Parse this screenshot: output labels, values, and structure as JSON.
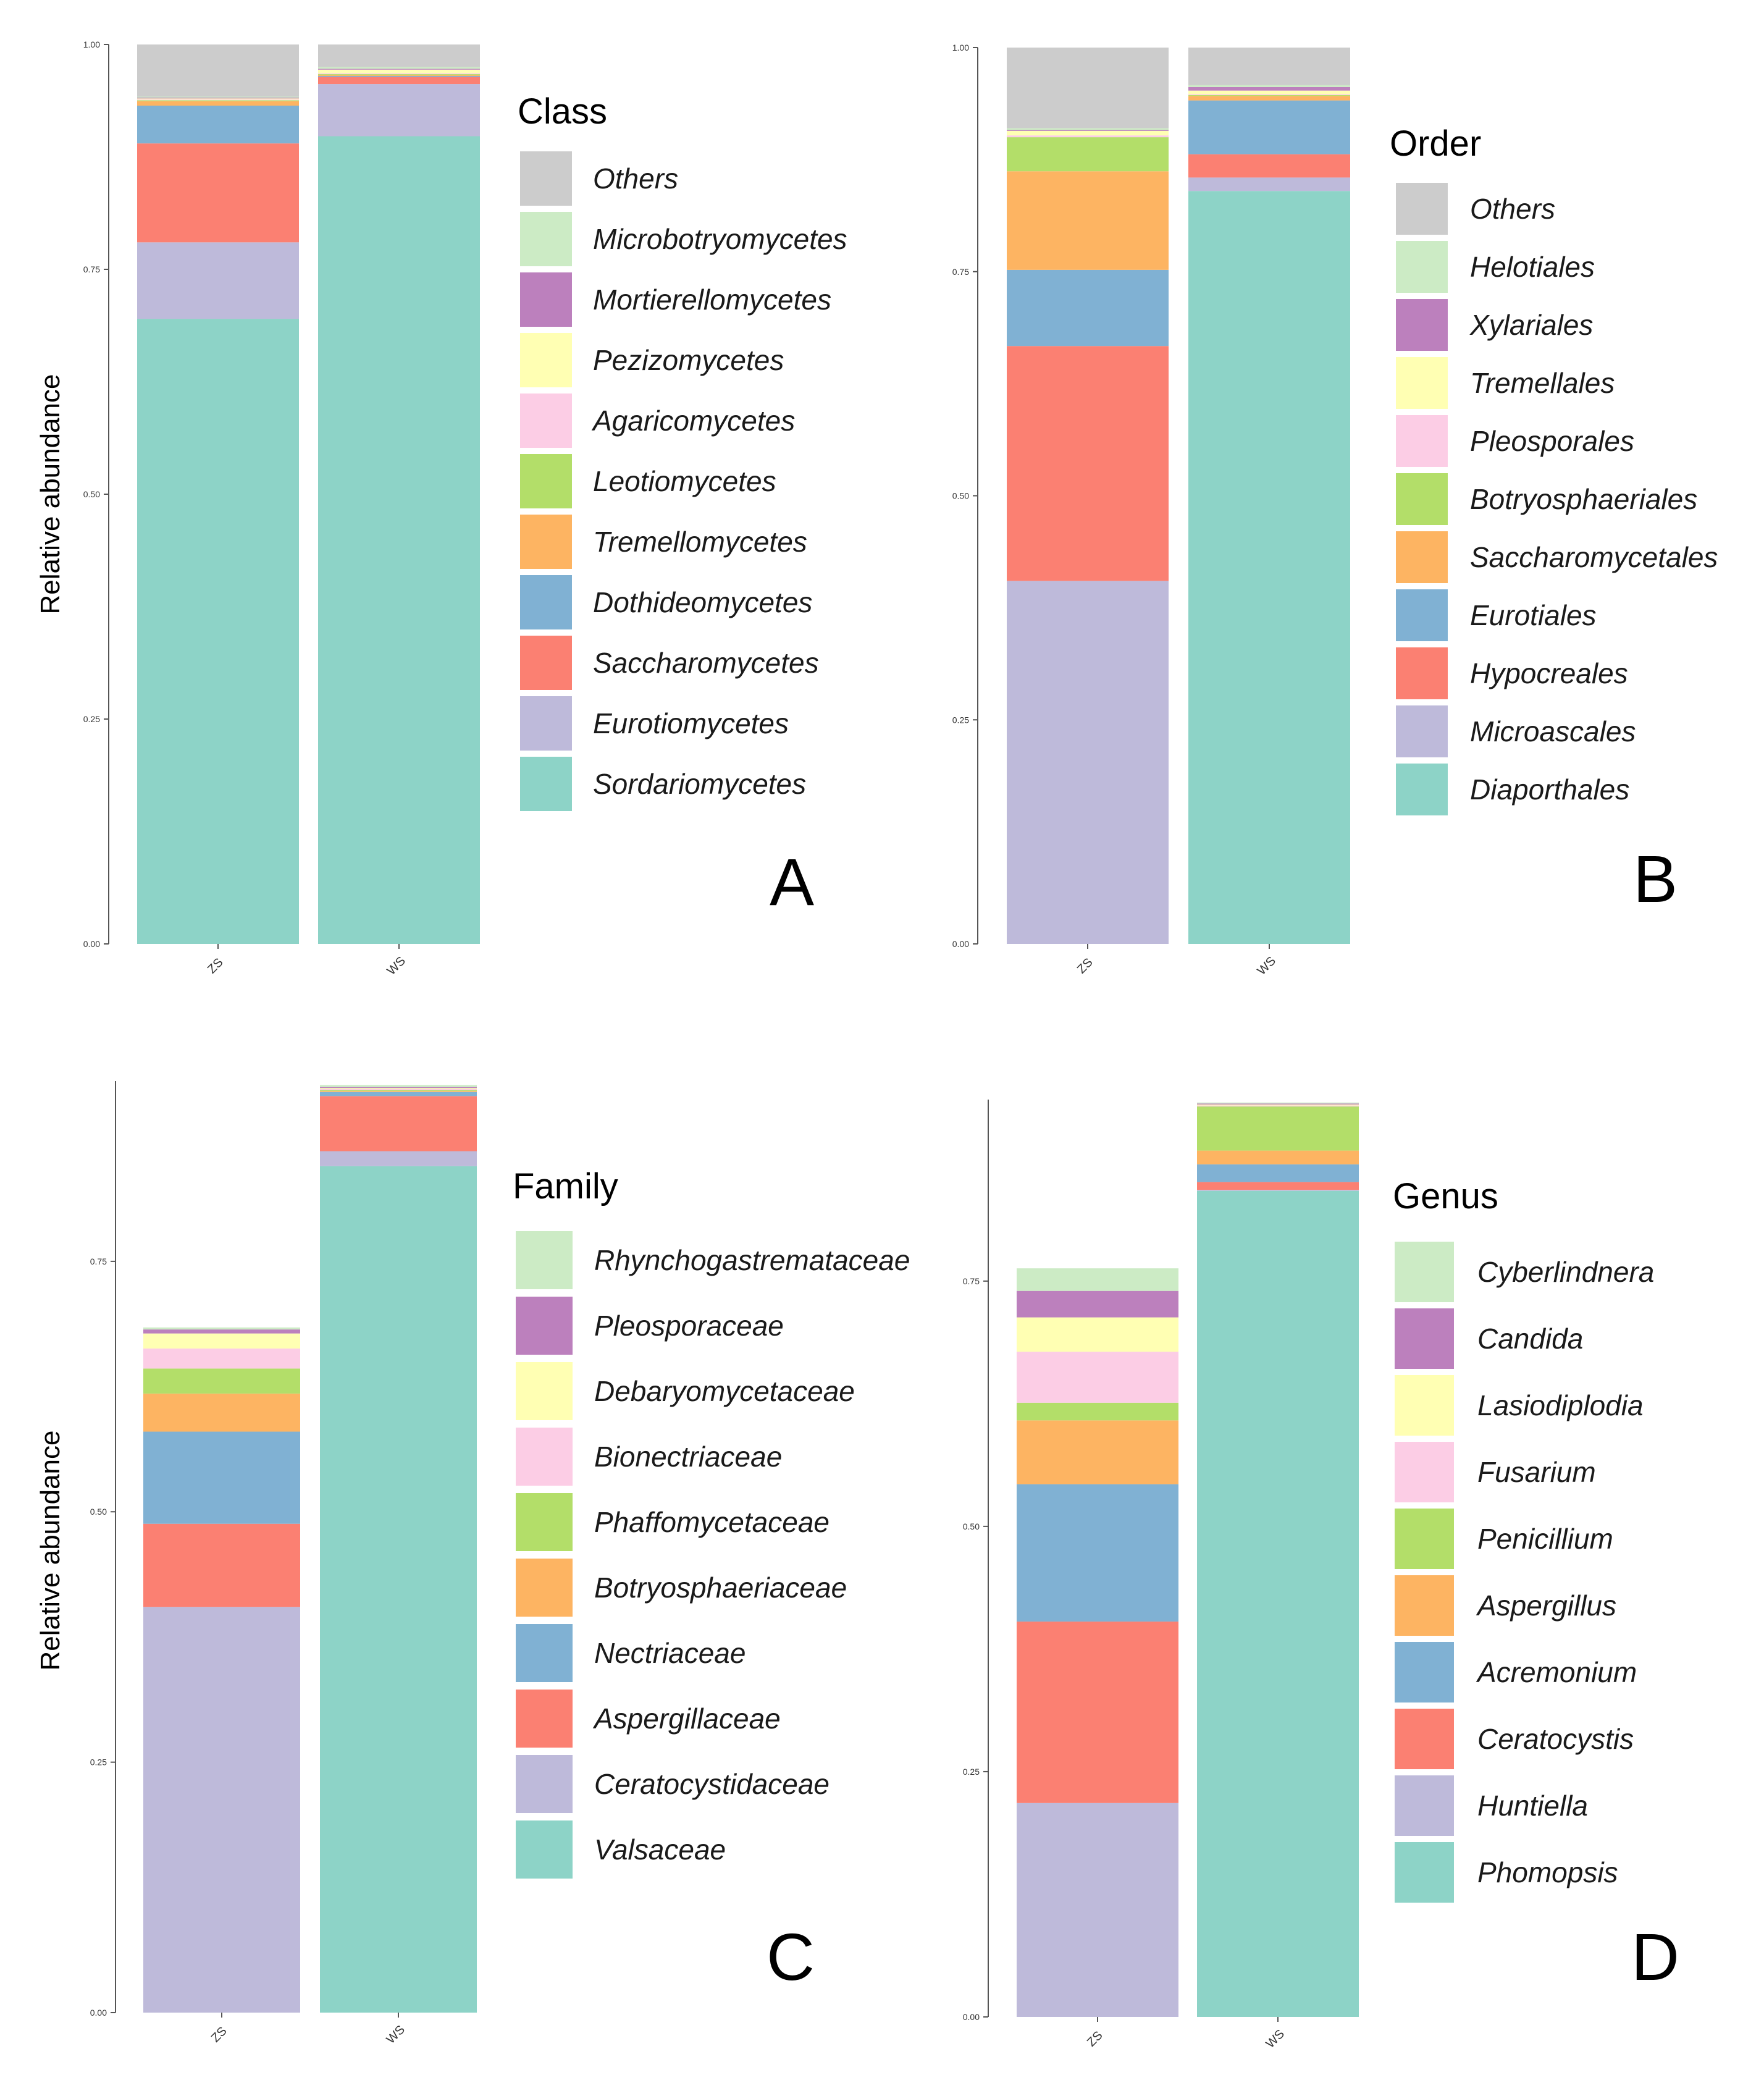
{
  "palette": {
    "Others": "#cccccc",
    "c1": "#ccebc5",
    "c2": "#bc80bd",
    "c3": "#ffffb3",
    "c4": "#fccde5",
    "c5": "#b3de69",
    "c6": "#fdb462",
    "c7": "#80b1d3",
    "c8": "#fb8072",
    "c9": "#bebada",
    "c10": "#8dd3c7"
  },
  "chart_data": [
    {
      "type": "bar",
      "stacked": true,
      "panel": "A",
      "ylabel": "Relative abundance",
      "ylim": [
        0,
        1
      ],
      "yticks": [
        "0.00",
        "0.25",
        "0.50",
        "0.75",
        "1.00"
      ],
      "categories": [
        "ZS",
        "WS"
      ],
      "legend_title": "Class",
      "legend_position": "right",
      "series": [
        {
          "name": "Sordariomycetes",
          "color": "#8dd3c7",
          "values": [
            0.695,
            0.898
          ]
        },
        {
          "name": "Eurotiomycetes",
          "color": "#bebada",
          "values": [
            0.085,
            0.058
          ]
        },
        {
          "name": "Saccharomycetes",
          "color": "#fb8072",
          "values": [
            0.11,
            0.008
          ]
        },
        {
          "name": "Dothideomycetes",
          "color": "#80b1d3",
          "values": [
            0.042,
            0.001
          ]
        },
        {
          "name": "Tremellomycetes",
          "color": "#fdb462",
          "values": [
            0.005,
            0.001
          ]
        },
        {
          "name": "Leotiomycetes",
          "color": "#b3de69",
          "values": [
            0.001,
            0.001
          ]
        },
        {
          "name": "Agaricomycetes",
          "color": "#fccde5",
          "values": [
            0.001,
            0.001
          ]
        },
        {
          "name": "Pezizomycetes",
          "color": "#ffffb3",
          "values": [
            0.001,
            0.004
          ]
        },
        {
          "name": "Mortierellomycetes",
          "color": "#bc80bd",
          "values": [
            0.001,
            0.001
          ]
        },
        {
          "name": "Microbotryomycetes",
          "color": "#ccebc5",
          "values": [
            0.001,
            0.002
          ]
        },
        {
          "name": "Others",
          "color": "#cccccc",
          "values": [
            0.058,
            0.025
          ]
        }
      ]
    },
    {
      "type": "bar",
      "stacked": true,
      "panel": "B",
      "ylabel": "",
      "ylim": [
        0,
        1
      ],
      "yticks": [
        "0.00",
        "0.25",
        "0.50",
        "0.75",
        "1.00"
      ],
      "categories": [
        "ZS",
        "WS"
      ],
      "legend_title": "Order",
      "legend_position": "right",
      "series": [
        {
          "name": "Diaporthales",
          "color": "#8dd3c7",
          "values": [
            0.0,
            0.84
          ]
        },
        {
          "name": "Microascales",
          "color": "#bebada",
          "values": [
            0.405,
            0.015
          ]
        },
        {
          "name": "Hypocreales",
          "color": "#fb8072",
          "values": [
            0.262,
            0.026
          ]
        },
        {
          "name": "Eurotiales",
          "color": "#80b1d3",
          "values": [
            0.085,
            0.06
          ]
        },
        {
          "name": "Saccharomycetales",
          "color": "#fdb462",
          "values": [
            0.11,
            0.005
          ]
        },
        {
          "name": "Botryosphaeriales",
          "color": "#b3de69",
          "values": [
            0.038,
            0.001
          ]
        },
        {
          "name": "Pleosporales",
          "color": "#fccde5",
          "values": [
            0.002,
            0.001
          ]
        },
        {
          "name": "Tremellales",
          "color": "#ffffb3",
          "values": [
            0.005,
            0.004
          ]
        },
        {
          "name": "Xylariales",
          "color": "#bc80bd",
          "values": [
            0.001,
            0.004
          ]
        },
        {
          "name": "Helotiales",
          "color": "#ccebc5",
          "values": [
            0.002,
            0.002
          ]
        },
        {
          "name": "Others",
          "color": "#cccccc",
          "values": [
            0.09,
            0.042
          ]
        }
      ]
    },
    {
      "type": "bar",
      "stacked": true,
      "panel": "C",
      "ylabel": "Relative abundance",
      "ylim": [
        0,
        0.93
      ],
      "yticks": [
        "0.00",
        "0.25",
        "0.50",
        "0.75"
      ],
      "categories": [
        "ZS",
        "WS"
      ],
      "legend_title": "Family",
      "legend_position": "right",
      "series": [
        {
          "name": "Valsaceae",
          "color": "#8dd3c7",
          "values": [
            0.0,
            0.845
          ]
        },
        {
          "name": "Ceratocystidaceae",
          "color": "#bebada",
          "values": [
            0.405,
            0.015
          ]
        },
        {
          "name": "Aspergillaceae",
          "color": "#fb8072",
          "values": [
            0.083,
            0.055
          ]
        },
        {
          "name": "Nectriaceae",
          "color": "#80b1d3",
          "values": [
            0.092,
            0.004
          ]
        },
        {
          "name": "Botryosphaeriaceae",
          "color": "#fdb462",
          "values": [
            0.038,
            0.001
          ]
        },
        {
          "name": "Phaffomycetaceae",
          "color": "#b3de69",
          "values": [
            0.025,
            0.001
          ]
        },
        {
          "name": "Bionectriaceae",
          "color": "#fccde5",
          "values": [
            0.02,
            0.001
          ]
        },
        {
          "name": "Debaryomycetaceae",
          "color": "#ffffb3",
          "values": [
            0.015,
            0.001
          ]
        },
        {
          "name": "Pleosporaceae",
          "color": "#bc80bd",
          "values": [
            0.004,
            0.001
          ]
        },
        {
          "name": "Rhynchogastremataceae",
          "color": "#ccebc5",
          "values": [
            0.002,
            0.002
          ]
        }
      ]
    },
    {
      "type": "bar",
      "stacked": true,
      "panel": "D",
      "ylabel": "",
      "ylim": [
        0,
        0.935
      ],
      "yticks": [
        "0.00",
        "0.25",
        "0.50",
        "0.75"
      ],
      "categories": [
        "ZS",
        "WS"
      ],
      "legend_title": "Genus",
      "legend_position": "right",
      "series": [
        {
          "name": "Phomopsis",
          "color": "#8dd3c7",
          "values": [
            0.0,
            0.842
          ]
        },
        {
          "name": "Huntiella",
          "color": "#bebada",
          "values": [
            0.218,
            0.001
          ]
        },
        {
          "name": "Ceratocystis",
          "color": "#fb8072",
          "values": [
            0.185,
            0.008
          ]
        },
        {
          "name": "Acremonium",
          "color": "#80b1d3",
          "values": [
            0.14,
            0.018
          ]
        },
        {
          "name": "Aspergillus",
          "color": "#fdb462",
          "values": [
            0.065,
            0.014
          ]
        },
        {
          "name": "Penicillium",
          "color": "#b3de69",
          "values": [
            0.018,
            0.045
          ]
        },
        {
          "name": "Fusarium",
          "color": "#fccde5",
          "values": [
            0.052,
            0.001
          ]
        },
        {
          "name": "Lasiodiplodia",
          "color": "#ffffb3",
          "values": [
            0.035,
            0.001
          ]
        },
        {
          "name": "Candida",
          "color": "#bc80bd",
          "values": [
            0.027,
            0.001
          ]
        },
        {
          "name": "Cyberlindnera",
          "color": "#ccebc5",
          "values": [
            0.023,
            0.001
          ]
        }
      ]
    }
  ]
}
